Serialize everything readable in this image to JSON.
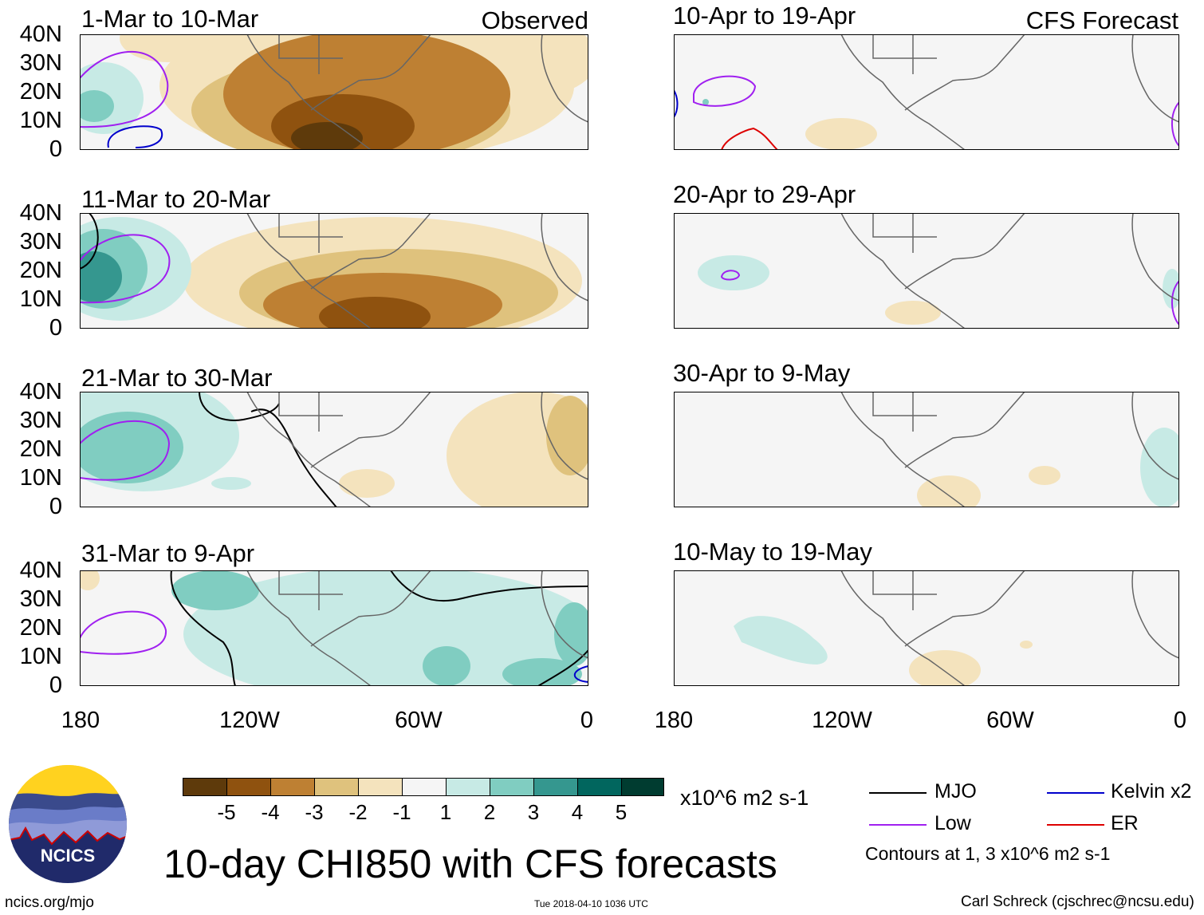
{
  "figure_title": "10-day CHI850 with CFS forecasts",
  "observed_label": "Observed",
  "forecast_label": "CFS Forecast",
  "panels_left": [
    {
      "title": "1-Mar to 10-Mar"
    },
    {
      "title": "11-Mar to 20-Mar"
    },
    {
      "title": "21-Mar to 30-Mar"
    },
    {
      "title": "31-Mar to 9-Apr"
    }
  ],
  "panels_right": [
    {
      "title": "10-Apr to 19-Apr"
    },
    {
      "title": "20-Apr to 29-Apr"
    },
    {
      "title": "30-Apr to 9-May"
    },
    {
      "title": "10-May to 19-May"
    }
  ],
  "lat_labels": [
    "40N",
    "30N",
    "20N",
    "10N",
    "0"
  ],
  "lon_labels": [
    "180",
    "120W",
    "60W",
    "0"
  ],
  "colorbar": {
    "unit": "x10^6 m2 s-1",
    "labels": [
      "-5",
      "-4",
      "-3",
      "-2",
      "-1",
      "1",
      "2",
      "3",
      "4",
      "5"
    ],
    "colors": [
      "#5e3a0b",
      "#8f520f",
      "#be8033",
      "#dfc27d",
      "#f4e3bd",
      "#f5f5f5",
      "#c7eae5",
      "#80cdc1",
      "#35978f",
      "#01665e",
      "#003c30"
    ]
  },
  "legend": {
    "items": [
      {
        "label": "MJO",
        "color": "#000000"
      },
      {
        "label": "Kelvin x2",
        "color": "#0000cc"
      },
      {
        "label": "Low",
        "color": "#a020f0"
      },
      {
        "label": "ER",
        "color": "#dd0000"
      }
    ],
    "contours_note": "Contours at 1, 3 x10^6 m2 s-1"
  },
  "logo_text": "NCICS",
  "footer": {
    "url": "ncics.org/mjo",
    "timestamp": "Tue 2018-04-10 1036 UTC",
    "credit": "Carl Schreck (cjschrec@ncsu.edu)"
  }
}
